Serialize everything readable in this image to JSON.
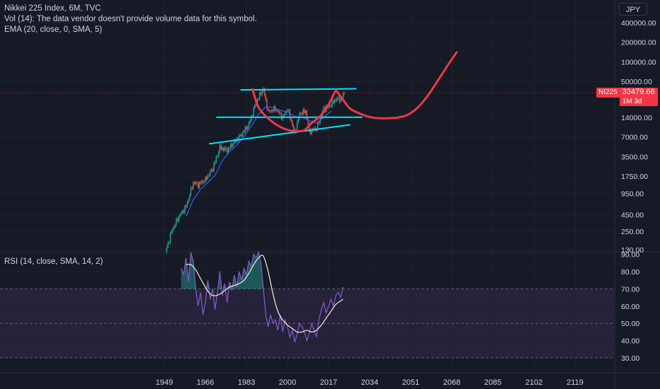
{
  "legend": {
    "title": "Nikkei 225 Index, 6M, TVC",
    "vol": "Vol (14): The data vendor doesn't provide volume data for this symbol.",
    "ema": "EMA (20, close, 0, SMA, 5)",
    "rsi": "RSI (14, close, SMA, 14, 2)"
  },
  "currency_button": "JPY",
  "price_tag": {
    "symbol": "NI225",
    "price": "33479.66",
    "countdown": "1M 3d"
  },
  "colors": {
    "background": "#161a25",
    "grid": "#1f2330",
    "candle_up": "#26a69a",
    "candle_down": "#ef5350",
    "ema": "#2962ff",
    "trendline": "#00e5ff",
    "cup_curve": "#f23645",
    "rsi_line": "#7e57c2",
    "rsi_ma": "#f5f0e1",
    "rsi_band": "#2b2540",
    "price_tag": "#f23645"
  },
  "chart_data": [
    {
      "type": "candlestick",
      "scale": "log",
      "y_ticks": [
        "400000.00",
        "200000.00",
        "100000.00",
        "50000.00",
        "14000.00",
        "7000.00",
        "3500.00",
        "1750.00",
        "950.00",
        "450.00",
        "250.00",
        "130.00"
      ],
      "y_tick_values": [
        400000,
        200000,
        100000,
        50000,
        14000,
        7000,
        3500,
        1750,
        950,
        450,
        250,
        130
      ],
      "x_ticks": [
        "1949",
        "1966",
        "1983",
        "2000",
        "2017",
        "2034",
        "2051",
        "2068",
        "2085",
        "2102",
        "2119"
      ],
      "x_tick_values": [
        1949,
        1966,
        1983,
        2000,
        2017,
        2034,
        2051,
        2068,
        2085,
        2102,
        2119
      ],
      "last_price": 33479.66,
      "close_series": {
        "x": [
          1949.5,
          1952,
          1955,
          1958,
          1961,
          1963,
          1966,
          1969,
          1972,
          1975,
          1978,
          1981,
          1984,
          1987,
          1989.9,
          1992,
          1995,
          1998,
          2000,
          2003,
          2005,
          2007.5,
          2009,
          2012,
          2015,
          2018,
          2020,
          2022,
          2023.5
        ],
        "y": [
          120,
          250,
          420,
          600,
          1400,
          1300,
          1550,
          2300,
          4800,
          4400,
          5900,
          7700,
          11000,
          24000,
          38900,
          17000,
          19000,
          14000,
          19000,
          8000,
          16000,
          17500,
          8500,
          9500,
          19000,
          22000,
          27000,
          26000,
          33479
        ]
      },
      "ema_series": {
        "x": [
          1958,
          1961,
          1964,
          1967,
          1970,
          1973,
          1976,
          1979,
          1982,
          1985,
          1988,
          1991,
          1994,
          1997,
          2000,
          2003,
          2006,
          2009,
          2012,
          2015,
          2018
        ],
        "y": [
          420,
          760,
          1100,
          1400,
          1800,
          3000,
          4200,
          5200,
          7100,
          10200,
          15500,
          20500,
          20000,
          18000,
          17000,
          14500,
          14000,
          12500,
          11500,
          14000,
          17500
        ]
      },
      "annotations": {
        "upper_resistance": {
          "x": [
            1980.5,
            2028.5
          ],
          "y": [
            37000,
            38500
          ]
        },
        "neckline": {
          "x": [
            1970.5,
            2031
          ],
          "y": [
            14100,
            14100
          ]
        },
        "rising_support": {
          "x": [
            1967.5,
            2026
          ],
          "y": [
            5500,
            10800
          ]
        },
        "cup1": {
          "x": [
            1985.5,
            1988,
            1992,
            1996,
            2000,
            2004,
            2007,
            2010,
            2013,
            2016,
            2018,
            2020
          ],
          "y": [
            38000,
            20000,
            13500,
            10500,
            9000,
            8600,
            8900,
            11500,
            14000,
            19000,
            26000,
            37000
          ]
        },
        "cup2": {
          "x": [
            2020,
            2023,
            2026,
            2030,
            2034,
            2038,
            2042,
            2046,
            2050,
            2054,
            2058,
            2062,
            2066,
            2070
          ],
          "y": [
            37000,
            26000,
            19000,
            16000,
            14200,
            13600,
            13600,
            14000,
            15500,
            20000,
            30000,
            50000,
            85000,
            140000
          ]
        }
      }
    },
    {
      "type": "line",
      "name": "RSI (14, close, SMA, 14, 2)",
      "y_ticks": [
        "90.00",
        "80.00",
        "70.00",
        "60.00",
        "50.00",
        "40.00",
        "30.00"
      ],
      "y_tick_values": [
        90,
        80,
        70,
        60,
        50,
        40,
        30
      ],
      "bands": {
        "upper": 70,
        "middle": 50,
        "lower": 30
      },
      "rsi": {
        "x": [
          1956,
          1957,
          1958,
          1959,
          1960,
          1961,
          1962,
          1963,
          1964,
          1965,
          1966,
          1967,
          1968,
          1969,
          1970,
          1971,
          1972,
          1973,
          1974,
          1975,
          1976,
          1977,
          1978,
          1979,
          1980,
          1981,
          1982,
          1983,
          1984,
          1985,
          1986,
          1987,
          1988,
          1989,
          1990,
          1991,
          1992,
          1993,
          1994,
          1995,
          1996,
          1997,
          1998,
          1999,
          2000,
          2001,
          2002,
          2003,
          2004,
          2005,
          2006,
          2007,
          2008,
          2009,
          2010,
          2011,
          2012,
          2013,
          2014,
          2015,
          2016,
          2017,
          2018,
          2019,
          2020,
          2021,
          2022,
          2023
        ],
        "y": [
          82,
          78,
          88,
          74,
          92,
          86,
          70,
          60,
          68,
          55,
          62,
          75,
          64,
          70,
          58,
          68,
          80,
          66,
          73,
          62,
          74,
          69,
          78,
          71,
          80,
          75,
          82,
          78,
          86,
          83,
          90,
          88,
          92,
          85,
          70,
          55,
          48,
          55,
          50,
          52,
          46,
          55,
          45,
          52,
          48,
          42,
          46,
          39,
          44,
          50,
          48,
          45,
          40,
          44,
          50,
          46,
          42,
          52,
          58,
          62,
          56,
          60,
          64,
          60,
          66,
          68,
          65,
          71
        ]
      },
      "rsi_ma": {
        "x": [
          1958,
          1960,
          1962,
          1964,
          1966,
          1968,
          1970,
          1972,
          1974,
          1976,
          1978,
          1980,
          1982,
          1984,
          1986,
          1988,
          1990,
          1992,
          1994,
          1996,
          1998,
          2000,
          2002,
          2004,
          2006,
          2008,
          2010,
          2012,
          2014,
          2016,
          2018,
          2020,
          2022,
          2023
        ],
        "y": [
          84,
          84,
          81,
          76,
          71,
          67,
          66,
          67,
          69,
          71,
          72,
          73,
          75,
          79,
          84,
          88,
          89,
          80,
          67,
          57,
          52,
          49,
          47,
          45,
          45,
          46,
          45,
          46,
          49,
          53,
          57,
          61,
          63,
          64
        ]
      }
    }
  ]
}
